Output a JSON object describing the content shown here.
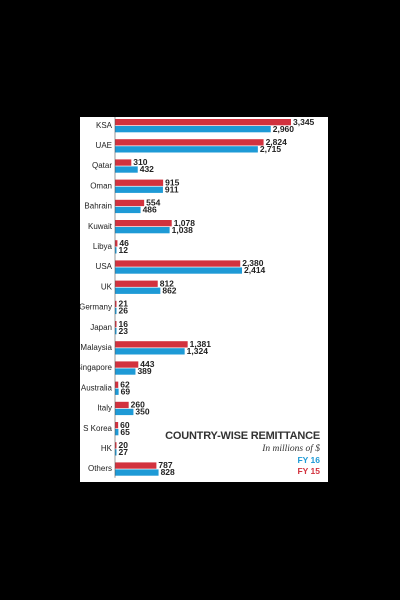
{
  "chart_data": {
    "type": "bar",
    "orientation": "horizontal",
    "title": "COUNTRY-WISE REMITTANCE",
    "subtitle": "In millions of $",
    "categories": [
      "KSA",
      "UAE",
      "Qatar",
      "Oman",
      "Bahrain",
      "Kuwait",
      "Libya",
      "USA",
      "UK",
      "Germany",
      "Japan",
      "Malaysia",
      "Singapore",
      "Australia",
      "Italy",
      "S Korea",
      "HK",
      "Others"
    ],
    "series": [
      {
        "name": "FY 15",
        "color": "#d2323e",
        "values": [
          3345,
          2824,
          310,
          915,
          554,
          1078,
          46,
          2380,
          812,
          21,
          16,
          1381,
          443,
          62,
          260,
          60,
          20,
          787
        ]
      },
      {
        "name": "FY 16",
        "color": "#1e9ad6",
        "values": [
          2960,
          2715,
          432,
          911,
          486,
          1038,
          12,
          2414,
          862,
          26,
          23,
          1324,
          389,
          69,
          350,
          65,
          27,
          828
        ]
      }
    ],
    "value_labels": [
      [
        "3,345",
        "2,824",
        "310",
        "915",
        "554",
        "1,078",
        "46",
        "2,380",
        "812",
        "21",
        "16",
        "1,381",
        "443",
        "62",
        "260",
        "60",
        "20",
        "787"
      ],
      [
        "2,960",
        "2,715",
        "432",
        "911",
        "486",
        "1,038",
        "12",
        "2,414",
        "862",
        "26",
        "23",
        "1,324",
        "389",
        "69",
        "350",
        "65",
        "27",
        "828"
      ]
    ],
    "legend": [
      {
        "label": "FY 16",
        "color": "#1e9ad6"
      },
      {
        "label": "FY 15",
        "color": "#d2323e"
      }
    ],
    "legend_position": "bottom-right",
    "grid": false
  }
}
